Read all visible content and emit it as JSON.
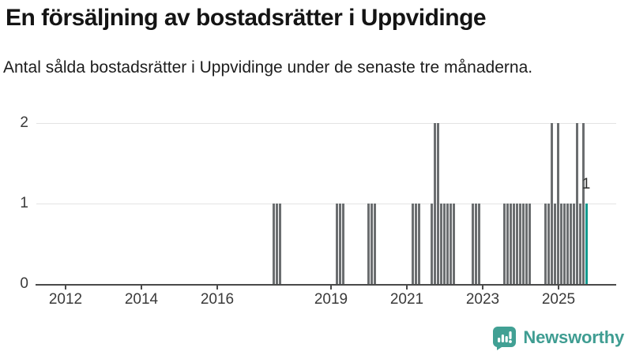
{
  "header": {
    "title": "En försäljning av bostadsrätter i Uppvidinge",
    "subtitle": "Antal sålda bostadsrätter i Uppvidinge under de senaste tre månaderna."
  },
  "chart_data": {
    "type": "bar",
    "title": "En försäljning av bostadsrätter i Uppvidinge",
    "subtitle": "Antal sålda bostadsrätter i Uppvidinge under de senaste tre månaderna.",
    "xlabel": "",
    "ylabel": "",
    "x_domain_months": [
      "2011-02",
      "2026-07"
    ],
    "ylim": [
      0,
      2
    ],
    "y_ticks": [
      0,
      1,
      2
    ],
    "x_tick_labels": [
      "2012",
      "2014",
      "2016",
      "2019",
      "2021",
      "2023",
      "2025"
    ],
    "grid": true,
    "legend": "none",
    "bar_color": "#6b6e70",
    "highlight_color": "#12998e",
    "highlight_month": "2025-09",
    "highlight_label": "1",
    "zero_months_omitted": true,
    "points": [
      {
        "month": "2017-06",
        "value": 1
      },
      {
        "month": "2017-07",
        "value": 1
      },
      {
        "month": "2017-08",
        "value": 1
      },
      {
        "month": "2019-02",
        "value": 1
      },
      {
        "month": "2019-03",
        "value": 1
      },
      {
        "month": "2019-04",
        "value": 1
      },
      {
        "month": "2019-12",
        "value": 1
      },
      {
        "month": "2020-01",
        "value": 1
      },
      {
        "month": "2020-02",
        "value": 1
      },
      {
        "month": "2021-02",
        "value": 1
      },
      {
        "month": "2021-03",
        "value": 1
      },
      {
        "month": "2021-04",
        "value": 1
      },
      {
        "month": "2021-08",
        "value": 1
      },
      {
        "month": "2021-09",
        "value": 2
      },
      {
        "month": "2021-10",
        "value": 2
      },
      {
        "month": "2021-11",
        "value": 1
      },
      {
        "month": "2021-12",
        "value": 1
      },
      {
        "month": "2022-01",
        "value": 1
      },
      {
        "month": "2022-02",
        "value": 1
      },
      {
        "month": "2022-03",
        "value": 1
      },
      {
        "month": "2022-09",
        "value": 1
      },
      {
        "month": "2022-10",
        "value": 1
      },
      {
        "month": "2022-11",
        "value": 1
      },
      {
        "month": "2023-07",
        "value": 1
      },
      {
        "month": "2023-08",
        "value": 1
      },
      {
        "month": "2023-09",
        "value": 1
      },
      {
        "month": "2023-10",
        "value": 1
      },
      {
        "month": "2023-11",
        "value": 1
      },
      {
        "month": "2023-12",
        "value": 1
      },
      {
        "month": "2024-01",
        "value": 1
      },
      {
        "month": "2024-02",
        "value": 1
      },
      {
        "month": "2024-03",
        "value": 1
      },
      {
        "month": "2024-08",
        "value": 1
      },
      {
        "month": "2024-09",
        "value": 1
      },
      {
        "month": "2024-10",
        "value": 2
      },
      {
        "month": "2024-11",
        "value": 1
      },
      {
        "month": "2024-12",
        "value": 2
      },
      {
        "month": "2025-01",
        "value": 1
      },
      {
        "month": "2025-02",
        "value": 1
      },
      {
        "month": "2025-03",
        "value": 1
      },
      {
        "month": "2025-04",
        "value": 1
      },
      {
        "month": "2025-05",
        "value": 1
      },
      {
        "month": "2025-06",
        "value": 2
      },
      {
        "month": "2025-07",
        "value": 1
      },
      {
        "month": "2025-08",
        "value": 2
      },
      {
        "month": "2025-09",
        "value": 1
      }
    ]
  },
  "footer": {
    "brand": "Newsworthy",
    "brand_color": "#3f9d92",
    "icon_color": "#41a094"
  }
}
